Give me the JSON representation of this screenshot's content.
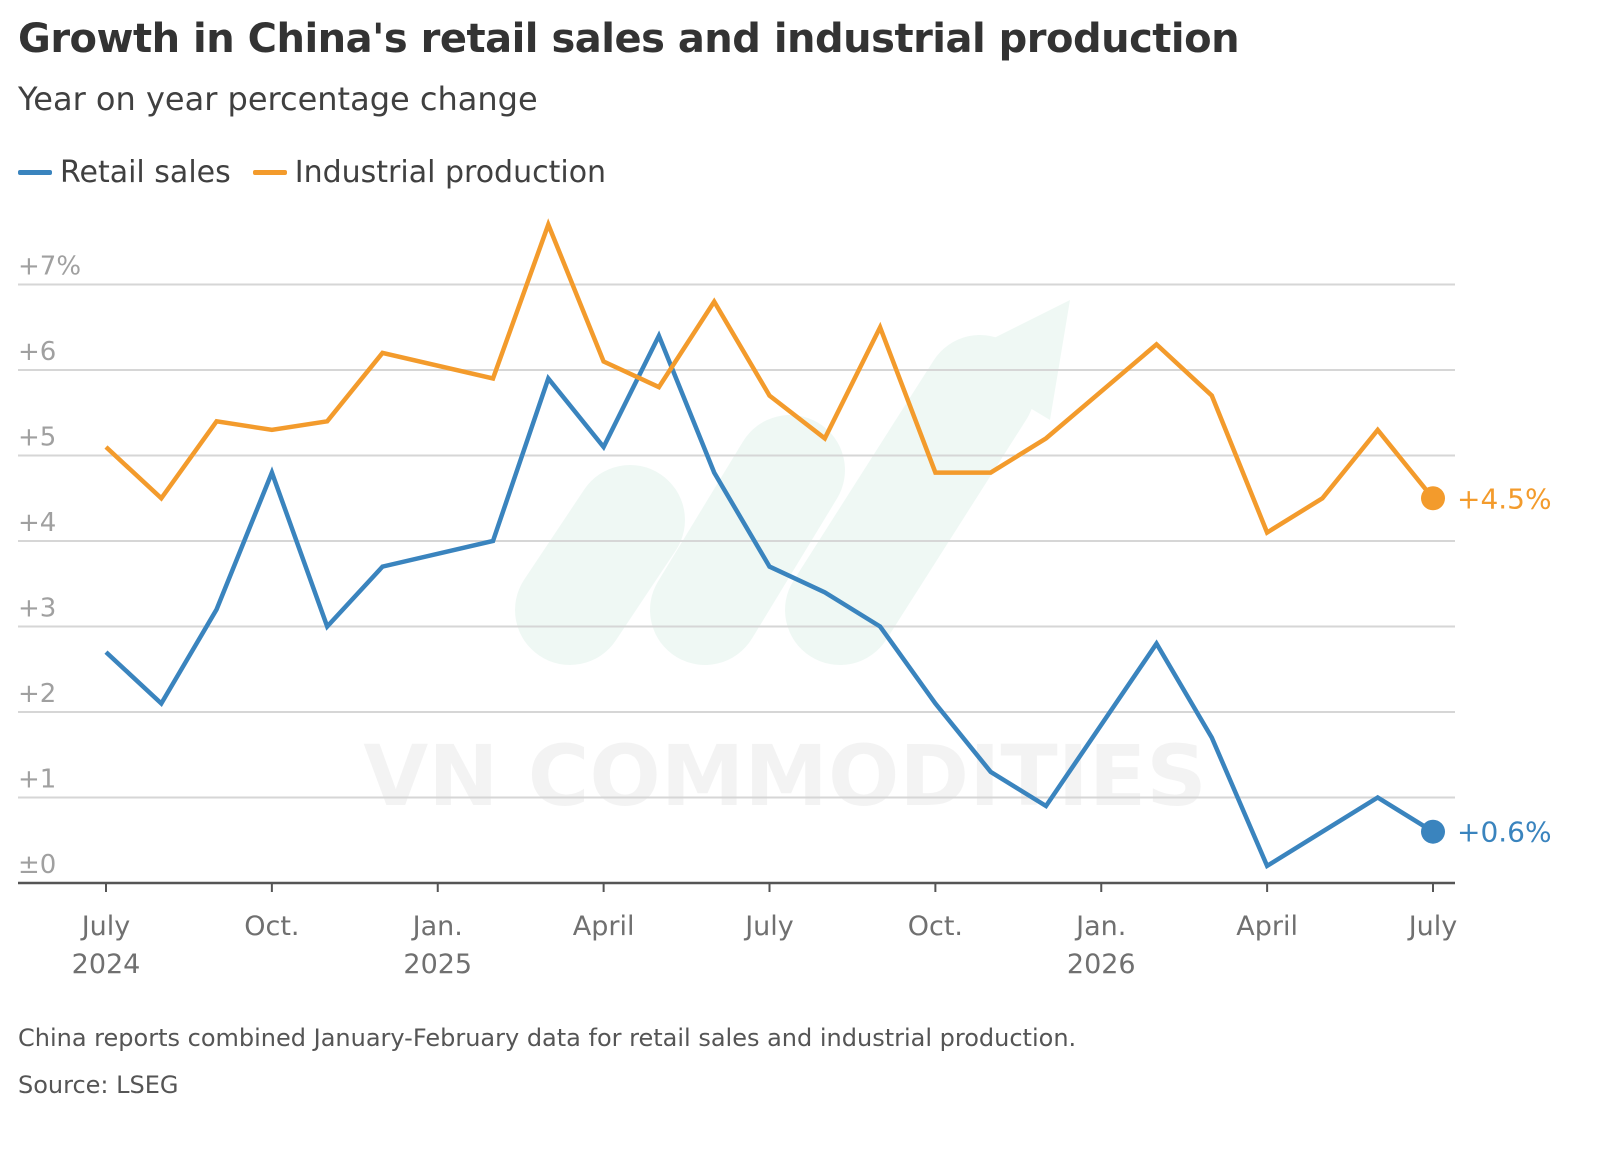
{
  "title": "Growth in China's retail sales and industrial production",
  "subtitle": "Year on year percentage change",
  "footnote": "China reports combined January-February data for retail sales and industrial production.",
  "source": "Source: LSEG",
  "watermark": "VN COMMODITIES",
  "colors": {
    "retail": "#3a84be",
    "industrial": "#f39b2c",
    "grid": "#d6d6d6",
    "axis": "#555555"
  },
  "legend": [
    {
      "label": "Retail sales",
      "color": "#3a84be"
    },
    {
      "label": "Industrial production",
      "color": "#f39b2c"
    }
  ],
  "chart_data": {
    "type": "line",
    "title": "Growth in China's retail sales and industrial production",
    "subtitle": "Year on year percentage change",
    "ylim": [
      0,
      7
    ],
    "y_ticks": [
      {
        "value": 7,
        "label": "+7%"
      },
      {
        "value": 6,
        "label": "+6"
      },
      {
        "value": 5,
        "label": "+5"
      },
      {
        "value": 4,
        "label": "+4"
      },
      {
        "value": 3,
        "label": "+3"
      },
      {
        "value": 2,
        "label": "+2"
      },
      {
        "value": 1,
        "label": "+1"
      },
      {
        "value": 0,
        "label": "±0"
      }
    ],
    "x_ticks": [
      {
        "month": "2024-07",
        "label": "July",
        "year": "2024"
      },
      {
        "month": "2024-10",
        "label": "Oct.",
        "year": ""
      },
      {
        "month": "2025-01",
        "label": "Jan.",
        "year": "2025"
      },
      {
        "month": "2025-04",
        "label": "April",
        "year": ""
      },
      {
        "month": "2025-07",
        "label": "July",
        "year": ""
      },
      {
        "month": "2025-10",
        "label": "Oct.",
        "year": ""
      },
      {
        "month": "2026-01",
        "label": "Jan.",
        "year": "2026"
      },
      {
        "month": "2026-04",
        "label": "April",
        "year": ""
      },
      {
        "month": "2026-07",
        "label": "July",
        "year": ""
      }
    ],
    "grid": true,
    "legend_position": "top-left",
    "series": [
      {
        "name": "Retail sales",
        "color": "#3a84be",
        "end_label": "+0.6%",
        "points": [
          {
            "x": "2024-07",
            "y": 2.7
          },
          {
            "x": "2024-08",
            "y": 2.1
          },
          {
            "x": "2024-09",
            "y": 3.2
          },
          {
            "x": "2024-10",
            "y": 4.8
          },
          {
            "x": "2024-11",
            "y": 3.0
          },
          {
            "x": "2024-12",
            "y": 3.7
          },
          {
            "x": "2025-02",
            "y": 4.0
          },
          {
            "x": "2025-03",
            "y": 5.9
          },
          {
            "x": "2025-04",
            "y": 5.1
          },
          {
            "x": "2025-05",
            "y": 6.4
          },
          {
            "x": "2025-06",
            "y": 4.8
          },
          {
            "x": "2025-07",
            "y": 3.7
          },
          {
            "x": "2025-08",
            "y": 3.4
          },
          {
            "x": "2025-09",
            "y": 3.0
          },
          {
            "x": "2025-10",
            "y": 2.1
          },
          {
            "x": "2025-11",
            "y": 1.3
          },
          {
            "x": "2025-12",
            "y": 0.9
          },
          {
            "x": "2026-02",
            "y": 2.8
          },
          {
            "x": "2026-03",
            "y": 1.7
          },
          {
            "x": "2026-04",
            "y": 0.2
          },
          {
            "x": "2026-05",
            "y": 0.6
          },
          {
            "x": "2026-06",
            "y": 1.0
          },
          {
            "x": "2026-07",
            "y": 0.6
          }
        ]
      },
      {
        "name": "Industrial production",
        "color": "#f39b2c",
        "end_label": "+4.5%",
        "points": [
          {
            "x": "2024-07",
            "y": 5.1
          },
          {
            "x": "2024-08",
            "y": 4.5
          },
          {
            "x": "2024-09",
            "y": 5.4
          },
          {
            "x": "2024-10",
            "y": 5.3
          },
          {
            "x": "2024-11",
            "y": 5.4
          },
          {
            "x": "2024-12",
            "y": 6.2
          },
          {
            "x": "2025-02",
            "y": 5.9
          },
          {
            "x": "2025-03",
            "y": 7.7
          },
          {
            "x": "2025-04",
            "y": 6.1
          },
          {
            "x": "2025-05",
            "y": 5.8
          },
          {
            "x": "2025-06",
            "y": 6.8
          },
          {
            "x": "2025-07",
            "y": 5.7
          },
          {
            "x": "2025-08",
            "y": 5.2
          },
          {
            "x": "2025-09",
            "y": 6.5
          },
          {
            "x": "2025-10",
            "y": 4.8
          },
          {
            "x": "2025-11",
            "y": 4.8
          },
          {
            "x": "2025-12",
            "y": 5.2
          },
          {
            "x": "2026-02",
            "y": 6.3
          },
          {
            "x": "2026-03",
            "y": 5.7
          },
          {
            "x": "2026-04",
            "y": 4.1
          },
          {
            "x": "2026-05",
            "y": 4.5
          },
          {
            "x": "2026-06",
            "y": 5.3
          },
          {
            "x": "2026-07",
            "y": 4.5
          }
        ]
      }
    ]
  }
}
